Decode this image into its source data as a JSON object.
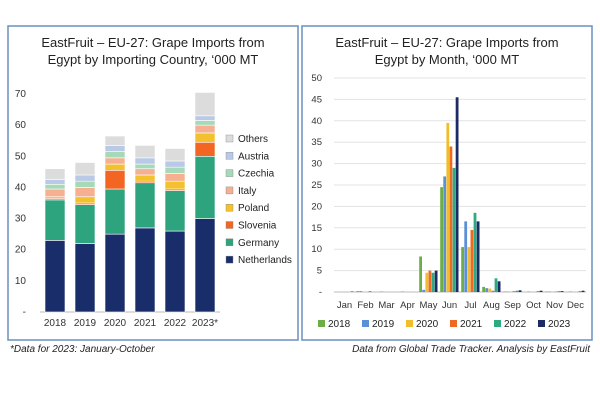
{
  "colors": {
    "Netherlands": "#1a2d6b",
    "Germany": "#2ea47e",
    "Slovenia": "#f26522",
    "Poland": "#f4c12e",
    "Italy": "#f4b090",
    "Czechia": "#a6d9b8",
    "Austria": "#b9c9e6",
    "Others": "#dcdcdc",
    "2018": "#6cae46",
    "2019": "#5b8fd6",
    "2020": "#f2bd2a",
    "2021": "#ee6a22",
    "2022": "#2eaa82",
    "2023": "#1c2b63",
    "panel_border": "#6a8fc0"
  },
  "footnote_left": "*Data for 2023: January-October",
  "footnote_right": "Data from Global Trade Tracker. Analysis by EastFruit",
  "chart_data": [
    {
      "type": "bar",
      "stacked": true,
      "title": "EastFruit – EU-27: Grape Imports from Egypt by Importing Country, ‘000 MT",
      "title_lines": [
        "EastFruit – EU-27: Grape Imports from",
        "Egypt by Importing Country, ‘000 MT"
      ],
      "categories": [
        "2018",
        "2019",
        "2020",
        "2021",
        "2022",
        "2023*"
      ],
      "ylim": [
        0,
        70
      ],
      "yticks": [
        "-",
        "10",
        "20",
        "30",
        "40",
        "50",
        "60",
        "70"
      ],
      "legend_order": [
        "Others",
        "Austria",
        "Czechia",
        "Italy",
        "Poland",
        "Slovenia",
        "Germany",
        "Netherlands"
      ],
      "series": [
        {
          "name": "Netherlands",
          "values": [
            23,
            22,
            25,
            27,
            26,
            30
          ]
        },
        {
          "name": "Germany",
          "values": [
            13,
            12.5,
            14.5,
            14.5,
            13,
            20
          ]
        },
        {
          "name": "Slovenia",
          "values": [
            0.5,
            0.5,
            6,
            0.5,
            0.5,
            4.5
          ]
        },
        {
          "name": "Poland",
          "values": [
            0.5,
            2,
            2,
            2,
            2.5,
            3
          ]
        },
        {
          "name": "Italy",
          "values": [
            2.5,
            3,
            2,
            2,
            2.5,
            2.5
          ]
        },
        {
          "name": "Czechia",
          "values": [
            1.5,
            2,
            2,
            1.5,
            2,
            1.5
          ]
        },
        {
          "name": "Austria",
          "values": [
            1.5,
            2,
            2,
            2,
            2,
            1.5
          ]
        },
        {
          "name": "Others",
          "values": [
            3.5,
            4,
            3,
            4,
            4,
            7.5
          ]
        }
      ]
    },
    {
      "type": "bar",
      "stacked": false,
      "title": "EastFruit – EU-27: Grape Imports from Egypt by Month, ‘000 MT",
      "title_lines": [
        "EastFruit – EU-27: Grape Imports from",
        "Egypt by Month, ‘000 MT"
      ],
      "categories": [
        "Jan",
        "Feb",
        "Mar",
        "Apr",
        "May",
        "Jun",
        "Jul",
        "Aug",
        "Sep",
        "Oct",
        "Nov",
        "Dec"
      ],
      "ylim": [
        0,
        50
      ],
      "yticks": [
        "-",
        "5",
        "10",
        "15",
        "20",
        "25",
        "30",
        "35",
        "40",
        "45",
        "50"
      ],
      "series": [
        {
          "name": "2018",
          "values": [
            0,
            0.2,
            0,
            0,
            8.3,
            24.5,
            10.5,
            1.2,
            0.1,
            0,
            0.1,
            0
          ]
        },
        {
          "name": "2019",
          "values": [
            0,
            0.2,
            0.1,
            0.1,
            0.5,
            27,
            16.5,
            0.9,
            0.1,
            0.1,
            0.1,
            0.1
          ]
        },
        {
          "name": "2020",
          "values": [
            0.1,
            0.1,
            0.1,
            0,
            4.5,
            39.5,
            10.5,
            0.8,
            0,
            0.1,
            0,
            0
          ]
        },
        {
          "name": "2021",
          "values": [
            0,
            0,
            0,
            0,
            5,
            34,
            14.5,
            0.3,
            0.2,
            0,
            0.1,
            0
          ]
        },
        {
          "name": "2022",
          "values": [
            0,
            0.2,
            0,
            0,
            4.5,
            29,
            18.5,
            3.2,
            0.3,
            0.2,
            0.2,
            0.2
          ]
        },
        {
          "name": "2023",
          "values": [
            0.1,
            0,
            0,
            0,
            5,
            45.5,
            16.5,
            2.5,
            0.4,
            0.3,
            0.2,
            0.3
          ]
        }
      ]
    }
  ]
}
